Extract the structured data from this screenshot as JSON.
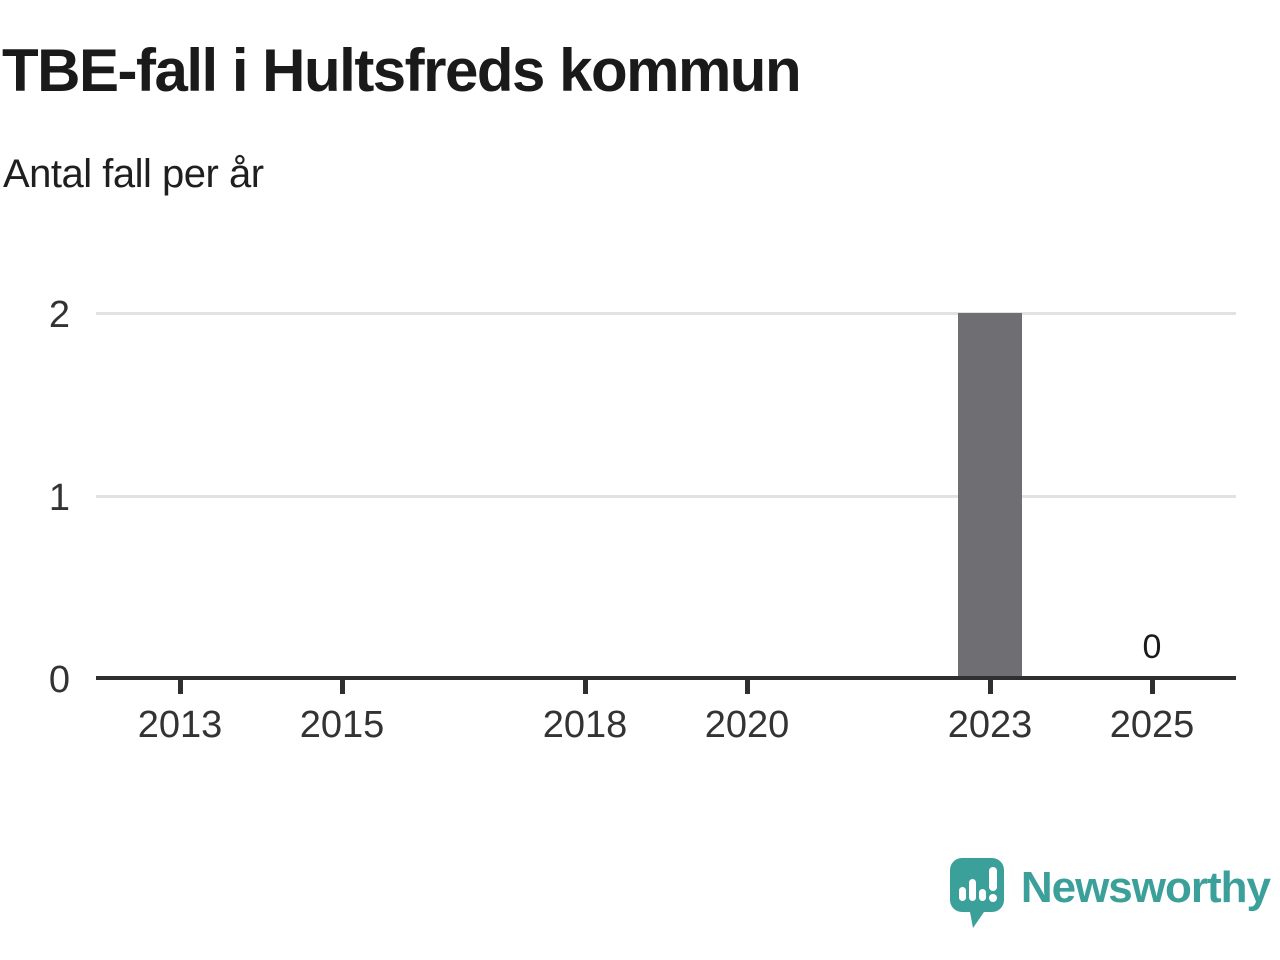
{
  "header": {
    "title": "TBE-fall i Hultsfreds kommun",
    "subtitle": "Antal fall per år"
  },
  "chart_data": {
    "type": "bar",
    "title": "TBE-fall i Hultsfreds kommun",
    "subtitle": "Antal fall per år",
    "xlabel": "",
    "ylabel": "Antal fall per år",
    "x_domain": [
      2012,
      2026
    ],
    "x_ticks": [
      2013,
      2015,
      2018,
      2020,
      2023,
      2025
    ],
    "y_ticks": [
      0,
      1,
      2
    ],
    "ylim": [
      0,
      2
    ],
    "grid": "horizontal",
    "legend": "none",
    "bars": [
      {
        "year": 2023,
        "value": 2
      }
    ],
    "value_labels": [
      {
        "year": 2025,
        "value": 0,
        "label": "0"
      }
    ],
    "bar_color": "#6e6e73"
  },
  "branding": {
    "logo_text": "Newsworthy",
    "logo_color": "#3ba09a",
    "logo_icon": "newsworthy-speech-bubble-bar-chart-icon"
  },
  "colors": {
    "background": "#ffffff",
    "title_text": "#1a1a1a",
    "tick_text": "#333333",
    "gridline": "#e2e2e2",
    "axis": "#2f2f2f",
    "bar": "#6e6e73",
    "accent_teal": "#3ba09a"
  }
}
